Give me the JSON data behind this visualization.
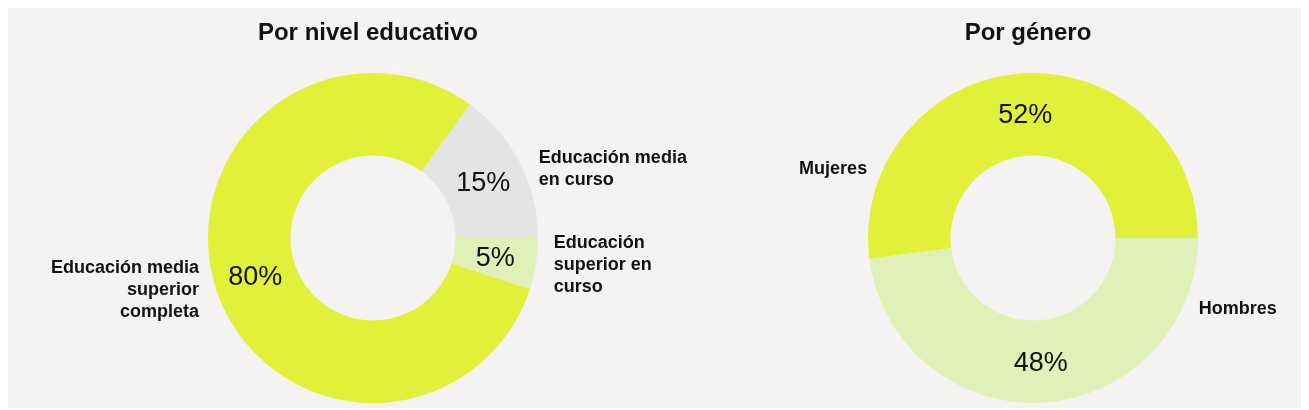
{
  "chart_data": [
    {
      "type": "donut",
      "title": "Por nivel educativo",
      "categories": [
        "Educación media en curso",
        "Educación media superior completa",
        "Educación superior en curso"
      ],
      "values": [
        15,
        80,
        5
      ],
      "value_labels": [
        "15%",
        "80%",
        "5%"
      ],
      "colors": [
        "#e4e4e2",
        "#e2f03a",
        "#e1f0b8"
      ]
    },
    {
      "type": "donut",
      "title": "Por género",
      "categories": [
        "Mujeres",
        "Hombres"
      ],
      "values": [
        52,
        48
      ],
      "value_labels": [
        "52%",
        "48%"
      ],
      "colors": [
        "#e2f03a",
        "#e1f0b8"
      ]
    }
  ]
}
